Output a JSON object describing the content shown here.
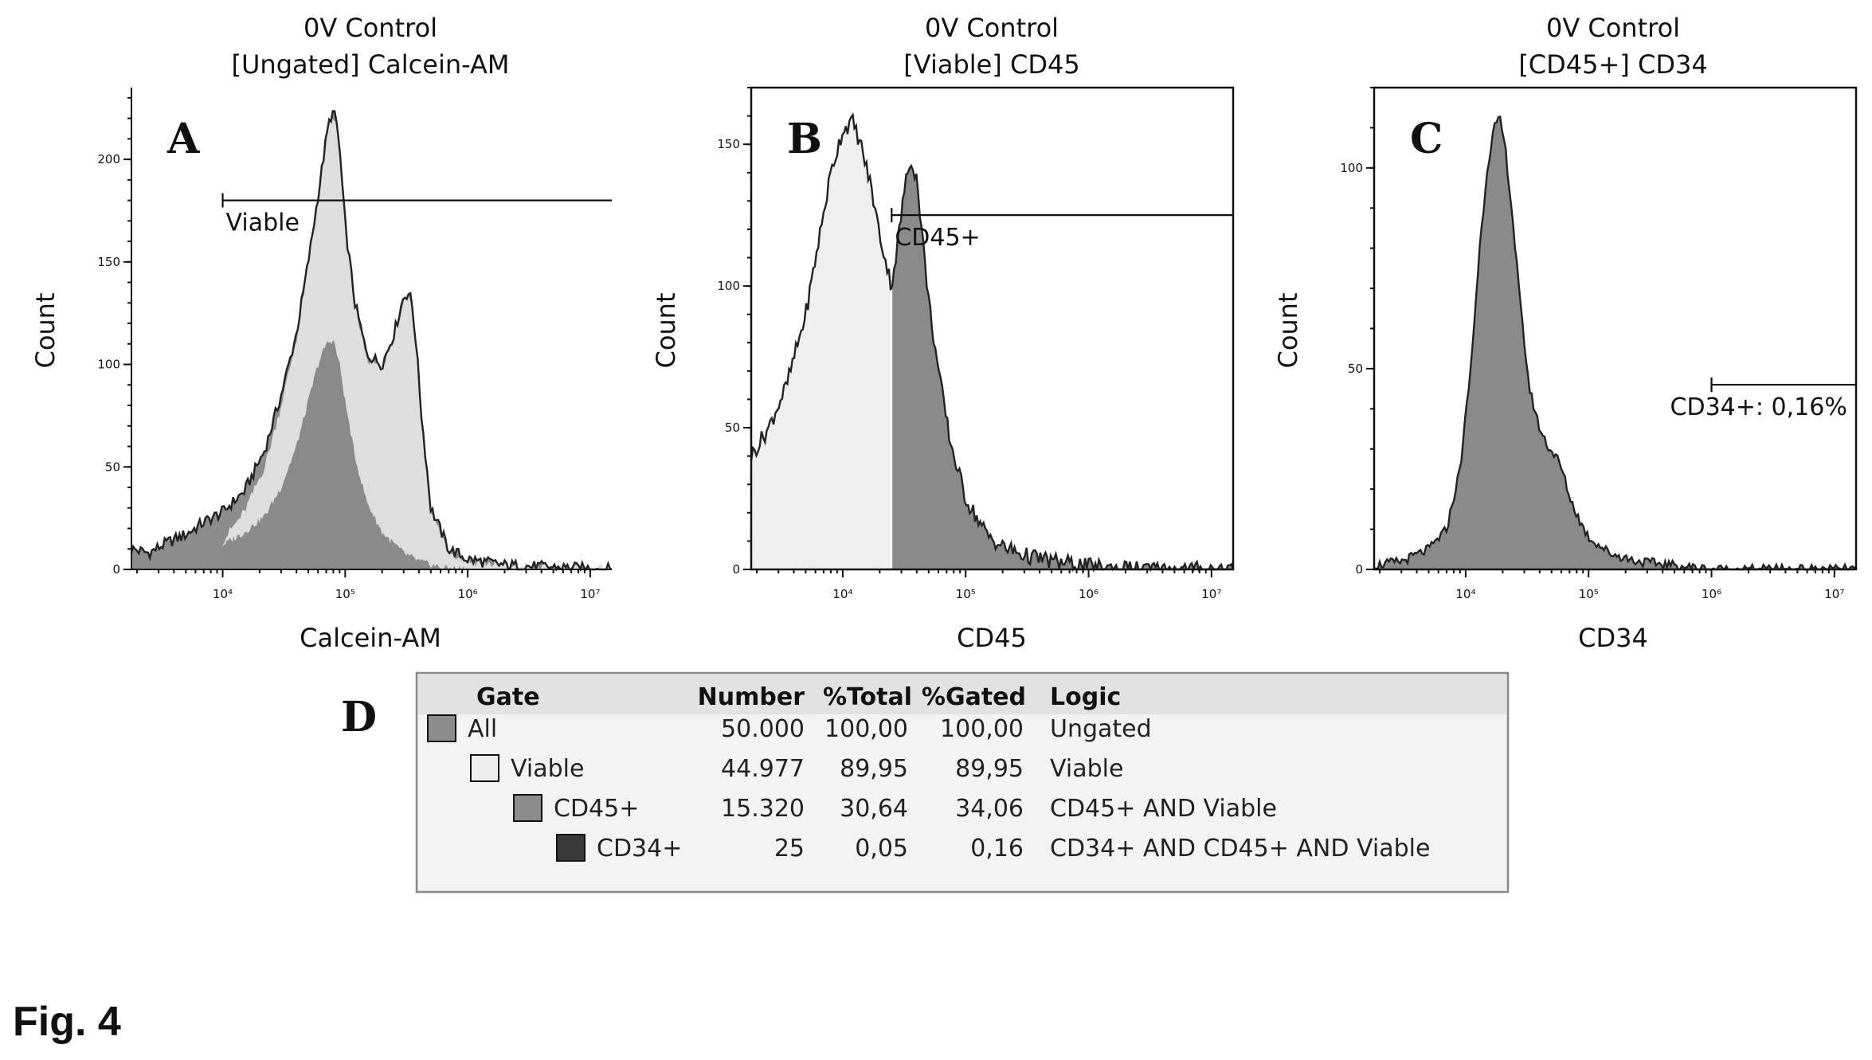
{
  "figure_caption": "Fig. 4",
  "colors": {
    "all_gray": "#8c8c8c",
    "viable_light": "#dedede",
    "viable_fill": "#d8d8d8",
    "cd45_fill": "#8a8a8a",
    "cd34_dark": "#555555",
    "outline": "#222222"
  },
  "chart_data": [
    {
      "type": "area",
      "panel": "A",
      "title": "0V Control",
      "subtitle": "[Ungated] Calcein-AM",
      "xlabel": "Calcein-AM",
      "ylabel": "Count",
      "x_scale": "log",
      "xlim": [
        1800,
        15000000
      ],
      "ylim": [
        0,
        235
      ],
      "y_ticks": [
        0,
        50,
        100,
        150,
        200
      ],
      "x_ticks": [
        {
          "value": 10000,
          "label": "10⁴"
        },
        {
          "value": 100000,
          "label": "10⁵"
        },
        {
          "value": 1000000,
          "label": "10⁶"
        },
        {
          "value": 10000000,
          "label": "10⁷"
        }
      ],
      "grid": false,
      "gate": {
        "label": "Viable",
        "start": 10000,
        "end": 15000000,
        "y": 180
      },
      "series": [
        {
          "name": "All",
          "role": "outline",
          "x": [
            1800,
            2500,
            3500,
            5000,
            7000,
            10000,
            15000,
            22000,
            30000,
            40000,
            50000,
            60000,
            70000,
            75000,
            80000,
            85000,
            90000,
            100000,
            120000,
            150000,
            200000,
            250000,
            300000,
            330000,
            350000,
            380000,
            420000,
            500000,
            700000,
            1000000,
            2000000,
            5000000,
            15000000
          ],
          "y": [
            10,
            8,
            13,
            17,
            23,
            28,
            38,
            58,
            85,
            115,
            150,
            182,
            210,
            220,
            223,
            218,
            205,
            168,
            130,
            105,
            100,
            115,
            133,
            135,
            130,
            110,
            75,
            30,
            10,
            5,
            2,
            1,
            0
          ]
        },
        {
          "name": "Viable",
          "role": "light",
          "x": [
            10000,
            15000,
            22000,
            30000,
            40000,
            50000,
            60000,
            70000,
            75000,
            80000,
            85000,
            90000,
            100000,
            120000,
            150000,
            200000,
            250000,
            300000,
            330000,
            350000,
            380000,
            420000,
            500000,
            700000,
            1000000,
            2000000,
            5000000,
            15000000
          ],
          "y": [
            14,
            28,
            50,
            80,
            112,
            148,
            180,
            208,
            218,
            221,
            216,
            203,
            166,
            128,
            103,
            98,
            113,
            131,
            133,
            128,
            108,
            73,
            28,
            9,
            4,
            2,
            1,
            0
          ]
        },
        {
          "name": "CD45+",
          "role": "dark",
          "x": [
            10000,
            15000,
            22000,
            30000,
            40000,
            50000,
            60000,
            70000,
            80000,
            90000,
            100000,
            120000,
            150000,
            200000,
            300000,
            400000,
            600000,
            1000000
          ],
          "y": [
            12,
            18,
            26,
            40,
            60,
            82,
            100,
            110,
            112,
            100,
            82,
            55,
            33,
            18,
            8,
            4,
            1,
            0
          ]
        }
      ]
    },
    {
      "type": "area",
      "panel": "B",
      "title": "0V Control",
      "subtitle": "[Viable] CD45",
      "xlabel": "CD45",
      "ylabel": "Count",
      "x_scale": "log",
      "xlim": [
        1800,
        15000000
      ],
      "ylim": [
        0,
        170
      ],
      "y_ticks": [
        0,
        50,
        100,
        150
      ],
      "x_ticks": [
        {
          "value": 10000,
          "label": "10⁴"
        },
        {
          "value": 100000,
          "label": "10⁵"
        },
        {
          "value": 1000000,
          "label": "10⁶"
        },
        {
          "value": 10000000,
          "label": "10⁷"
        }
      ],
      "grid": false,
      "gate": {
        "label": "CD45+",
        "start": 25000,
        "end": 15000000,
        "y": 125
      },
      "split_x": 25000,
      "series": [
        {
          "name": "Viable",
          "x": [
            1800,
            2500,
            3500,
            5000,
            6500,
            8000,
            10000,
            12000,
            14000,
            17000,
            20000,
            24000,
            25000,
            28000,
            32000,
            36000,
            40000,
            45000,
            50000,
            60000,
            75000,
            100000,
            150000,
            200000,
            300000,
            500000,
            1000000,
            3000000,
            15000000
          ],
          "y": [
            40,
            50,
            65,
            90,
            118,
            140,
            155,
            158,
            150,
            135,
            118,
            103,
            100,
            115,
            135,
            145,
            138,
            115,
            95,
            70,
            45,
            25,
            12,
            8,
            5,
            3,
            1,
            0,
            0
          ]
        }
      ]
    },
    {
      "type": "area",
      "panel": "C",
      "title": "0V Control",
      "subtitle": "[CD45+] CD34",
      "xlabel": "CD34",
      "ylabel": "Count",
      "x_scale": "log",
      "xlim": [
        1800,
        15000000
      ],
      "ylim": [
        0,
        120
      ],
      "y_ticks": [
        0,
        50,
        100
      ],
      "x_ticks": [
        {
          "value": 10000,
          "label": "10⁴"
        },
        {
          "value": 100000,
          "label": "10⁵"
        },
        {
          "value": 1000000,
          "label": "10⁶"
        },
        {
          "value": 10000000,
          "label": "10⁷"
        }
      ],
      "grid": false,
      "gate": {
        "label": "CD34+: 0,16%",
        "start": 1000000,
        "end": 15000000,
        "y": 46
      },
      "series": [
        {
          "name": "CD45+",
          "x": [
            1800,
            3000,
            5000,
            7000,
            9000,
            11000,
            13000,
            15000,
            17000,
            19000,
            21000,
            24000,
            28000,
            33000,
            40000,
            48000,
            55000,
            62000,
            70000,
            85000,
            100000,
            150000,
            250000,
            500000,
            1000000,
            3000000,
            15000000
          ],
          "y": [
            1,
            2,
            5,
            10,
            25,
            50,
            80,
            100,
            110,
            112,
            105,
            88,
            65,
            45,
            35,
            30,
            28,
            24,
            18,
            12,
            8,
            4,
            2,
            1,
            0,
            0,
            0
          ]
        }
      ]
    }
  ],
  "table": {
    "panel": "D",
    "headers": {
      "gate": "Gate",
      "number": "Number",
      "total": "%Total",
      "gated": "%Gated",
      "logic": "Logic"
    },
    "rows": [
      {
        "gate": "All",
        "number": "50.000",
        "total": "100,00",
        "gated": "100,00",
        "logic": "Ungated",
        "level": 0,
        "swatch": "#8c8c8c"
      },
      {
        "gate": "Viable",
        "number": "44.977",
        "total": "89,95",
        "gated": "89,95",
        "logic": "Viable",
        "level": 1,
        "swatch": "#eeeeee"
      },
      {
        "gate": "CD45+",
        "number": "15.320",
        "total": "30,64",
        "gated": "34,06",
        "logic": "CD45+ AND Viable",
        "level": 2,
        "swatch": "#8c8c8c"
      },
      {
        "gate": "CD34+",
        "number": "25",
        "total": "0,05",
        "gated": "0,16",
        "logic": "CD34+ AND CD45+ AND Viable",
        "level": 3,
        "swatch": "#3a3a3a"
      }
    ]
  }
}
